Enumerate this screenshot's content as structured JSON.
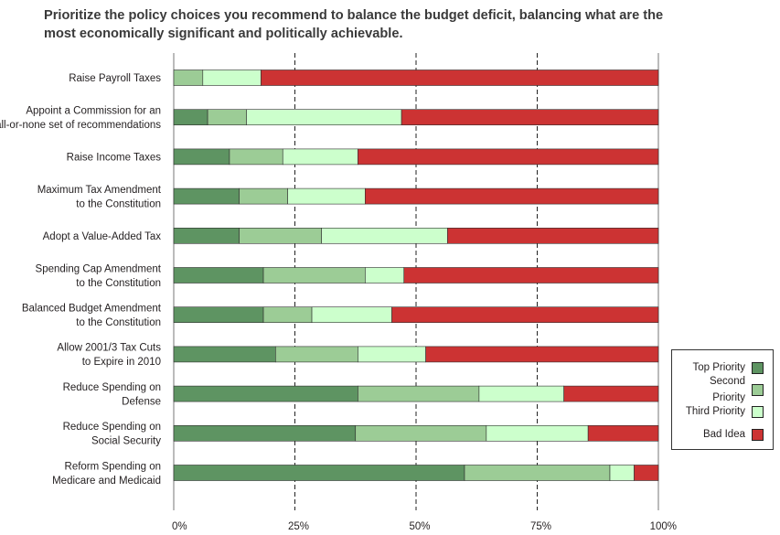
{
  "title": {
    "line1": "Prioritize the policy choices you recommend to balance the budget deficit, balancing what are the",
    "line2": "most economically significant and politically achievable."
  },
  "chart_data": {
    "type": "bar",
    "orientation": "horizontal",
    "stacked": true,
    "title": "Prioritize the policy choices you recommend to balance the budget deficit, balancing what are the most economically significant and politically achievable.",
    "xlabel": "",
    "ylabel": "",
    "xlim": [
      0,
      100
    ],
    "x_ticks": [
      "0%",
      "25%",
      "50%",
      "75%",
      "100%"
    ],
    "categories": [
      [
        "Raise Payroll Taxes"
      ],
      [
        "Appoint a Commission for an",
        "all-or-none set of recommendations"
      ],
      [
        "Raise Income Taxes"
      ],
      [
        "Maximum Tax Amendment",
        "to the Constitution"
      ],
      [
        "Adopt a Value-Added Tax"
      ],
      [
        "Spending Cap Amendment",
        "to the Constitution"
      ],
      [
        "Balanced Budget Amendment",
        "to the Constitution"
      ],
      [
        "Allow 2001/3 Tax Cuts",
        "to Expire in 2010"
      ],
      [
        "Reduce Spending on",
        "Defense"
      ],
      [
        "Reduce Spending on",
        "Social Security"
      ],
      [
        "Reform Spending on",
        "Medicare and Medicaid"
      ]
    ],
    "series": [
      {
        "name": "Top Priority",
        "color": "#5e9462",
        "values": [
          0,
          7,
          11.5,
          13.5,
          13.5,
          18.5,
          18.5,
          21,
          38,
          37.5,
          60
        ]
      },
      {
        "name": "Second Priority",
        "color": "#9ccc96",
        "values": [
          6,
          8,
          11,
          10,
          17,
          21,
          10,
          17,
          25,
          27,
          30
        ]
      },
      {
        "name": "Third Priority",
        "color": "#ccffcc",
        "values": [
          12,
          32,
          15.5,
          16,
          26,
          8,
          16.5,
          14,
          17.5,
          21,
          5
        ]
      },
      {
        "name": "Bad Idea",
        "color": "#cc3333",
        "values": [
          82,
          53,
          62,
          60.5,
          43.5,
          52.5,
          55,
          48,
          19.5,
          14.5,
          5
        ]
      }
    ],
    "legend": {
      "position": "right",
      "labels": [
        [
          "Top Priority"
        ],
        [
          "Second",
          "Priority"
        ],
        [
          "Third Priority"
        ],
        [
          "Bad Idea"
        ]
      ]
    },
    "grid": "dashed vertical at 25%, 50%, 75%"
  }
}
